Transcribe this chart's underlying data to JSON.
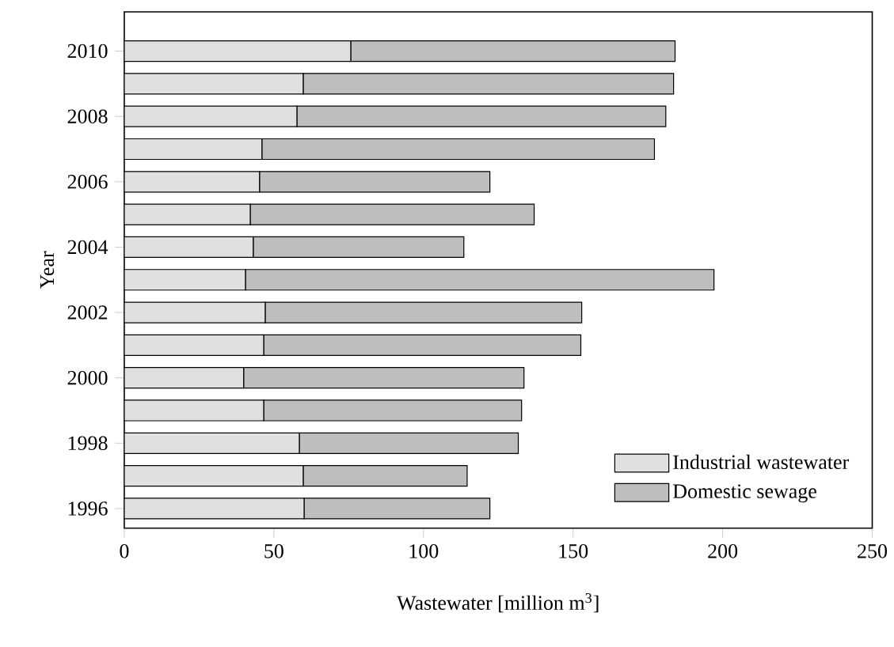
{
  "chart_data": {
    "type": "bar",
    "orientation": "horizontal",
    "stacked": true,
    "xlabel": "Wastewater [million m$^{3}$]",
    "ylabel": "Year",
    "categories": [
      "2010",
      null,
      "2008",
      null,
      "2006",
      null,
      "2004",
      null,
      "2002",
      null,
      "2000",
      null,
      "1998",
      null,
      "1996"
    ],
    "series": [
      {
        "name": "Industrial wastewater",
        "color": "#e0e0e0",
        "values": [
          75.7,
          59.8,
          57.7,
          46.0,
          45.2,
          42.1,
          43.1,
          40.5,
          47.1,
          46.6,
          39.9,
          46.6,
          58.5,
          59.8,
          60.1
        ]
      },
      {
        "name": "Domestic sewage",
        "color": "#bebebe",
        "values": [
          108.4,
          123.8,
          123.3,
          131.2,
          77.0,
          94.9,
          70.4,
          156.6,
          105.8,
          106.0,
          93.7,
          86.2,
          73.2,
          54.8,
          62.1
        ]
      }
    ],
    "xlim": [
      0,
      250
    ],
    "xticks": [
      0,
      50,
      100,
      150,
      200,
      250
    ],
    "legend": "bottom right",
    "grid": false
  }
}
